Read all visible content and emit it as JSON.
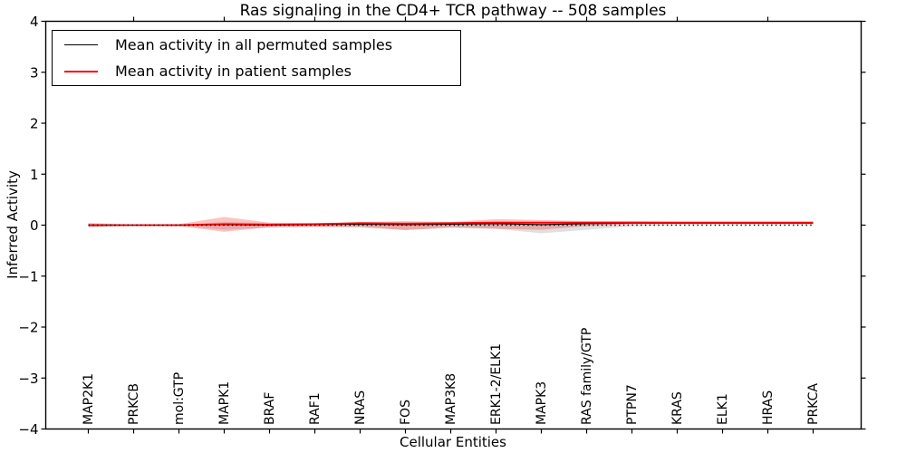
{
  "chart_data": {
    "type": "line",
    "title": "Ras signaling in the CD4+ TCR pathway -- 508 samples",
    "xlabel": "Cellular Entities",
    "ylabel": "Inferred Activity",
    "ylim": [
      -4,
      4
    ],
    "yticks": [
      -4,
      -3,
      -2,
      -1,
      0,
      1,
      2,
      3,
      4
    ],
    "grid": false,
    "legend_position": "upper left",
    "categories": [
      "MAP2K1",
      "PRKCB",
      "mol:GTP",
      "MAPK1",
      "BRAF",
      "RAF1",
      "NRAS",
      "FOS",
      "MAP3K8",
      "ERK1-2/ELK1",
      "MAPK3",
      "RAS family/GTP",
      "PTPN7",
      "KRAS",
      "ELK1",
      "HRAS",
      "PRKCA"
    ],
    "series": [
      {
        "name": "Mean activity in all permuted samples",
        "color": "#000000",
        "line_width": 1.2,
        "values": [
          0.0,
          0.0,
          0.0,
          0.01,
          0.0,
          0.01,
          0.02,
          0.01,
          0.02,
          0.03,
          0.01,
          0.03,
          0.04,
          0.04,
          0.04,
          0.04,
          0.04
        ],
        "band_lo": [
          -0.05,
          -0.01,
          -0.01,
          -0.09,
          -0.05,
          -0.04,
          -0.05,
          -0.09,
          -0.06,
          -0.07,
          -0.16,
          -0.09,
          -0.02,
          0.0,
          0.0,
          0.0,
          0.0
        ],
        "band_hi": [
          0.05,
          0.01,
          0.01,
          0.06,
          0.04,
          0.03,
          0.05,
          0.05,
          0.05,
          0.07,
          0.06,
          0.05,
          0.05,
          0.06,
          0.06,
          0.06,
          0.06
        ],
        "band_color": "#999999",
        "band_opacity": 0.3
      },
      {
        "name": "Mean activity in patient samples",
        "color": "#ff0000",
        "line_width": 1.8,
        "values": [
          0.0,
          0.0,
          0.0,
          0.02,
          0.01,
          0.02,
          0.04,
          0.03,
          0.04,
          0.05,
          0.05,
          0.05,
          0.05,
          0.05,
          0.05,
          0.05,
          0.05
        ],
        "band_lo": [
          -0.03,
          -0.01,
          -0.02,
          -0.13,
          -0.04,
          -0.03,
          -0.03,
          -0.1,
          -0.04,
          -0.07,
          -0.09,
          -0.02,
          0.02,
          0.03,
          0.03,
          0.03,
          0.03
        ],
        "band_hi": [
          0.03,
          0.01,
          0.02,
          0.16,
          0.05,
          0.04,
          0.06,
          0.08,
          0.06,
          0.12,
          0.1,
          0.08,
          0.08,
          0.07,
          0.07,
          0.07,
          0.07
        ],
        "band_color": "#ff0000",
        "band_opacity": 0.24
      }
    ],
    "reference_line": {
      "y": 0,
      "style": "dotted",
      "color": "#000000"
    }
  },
  "sample_count_note": "508 samples"
}
